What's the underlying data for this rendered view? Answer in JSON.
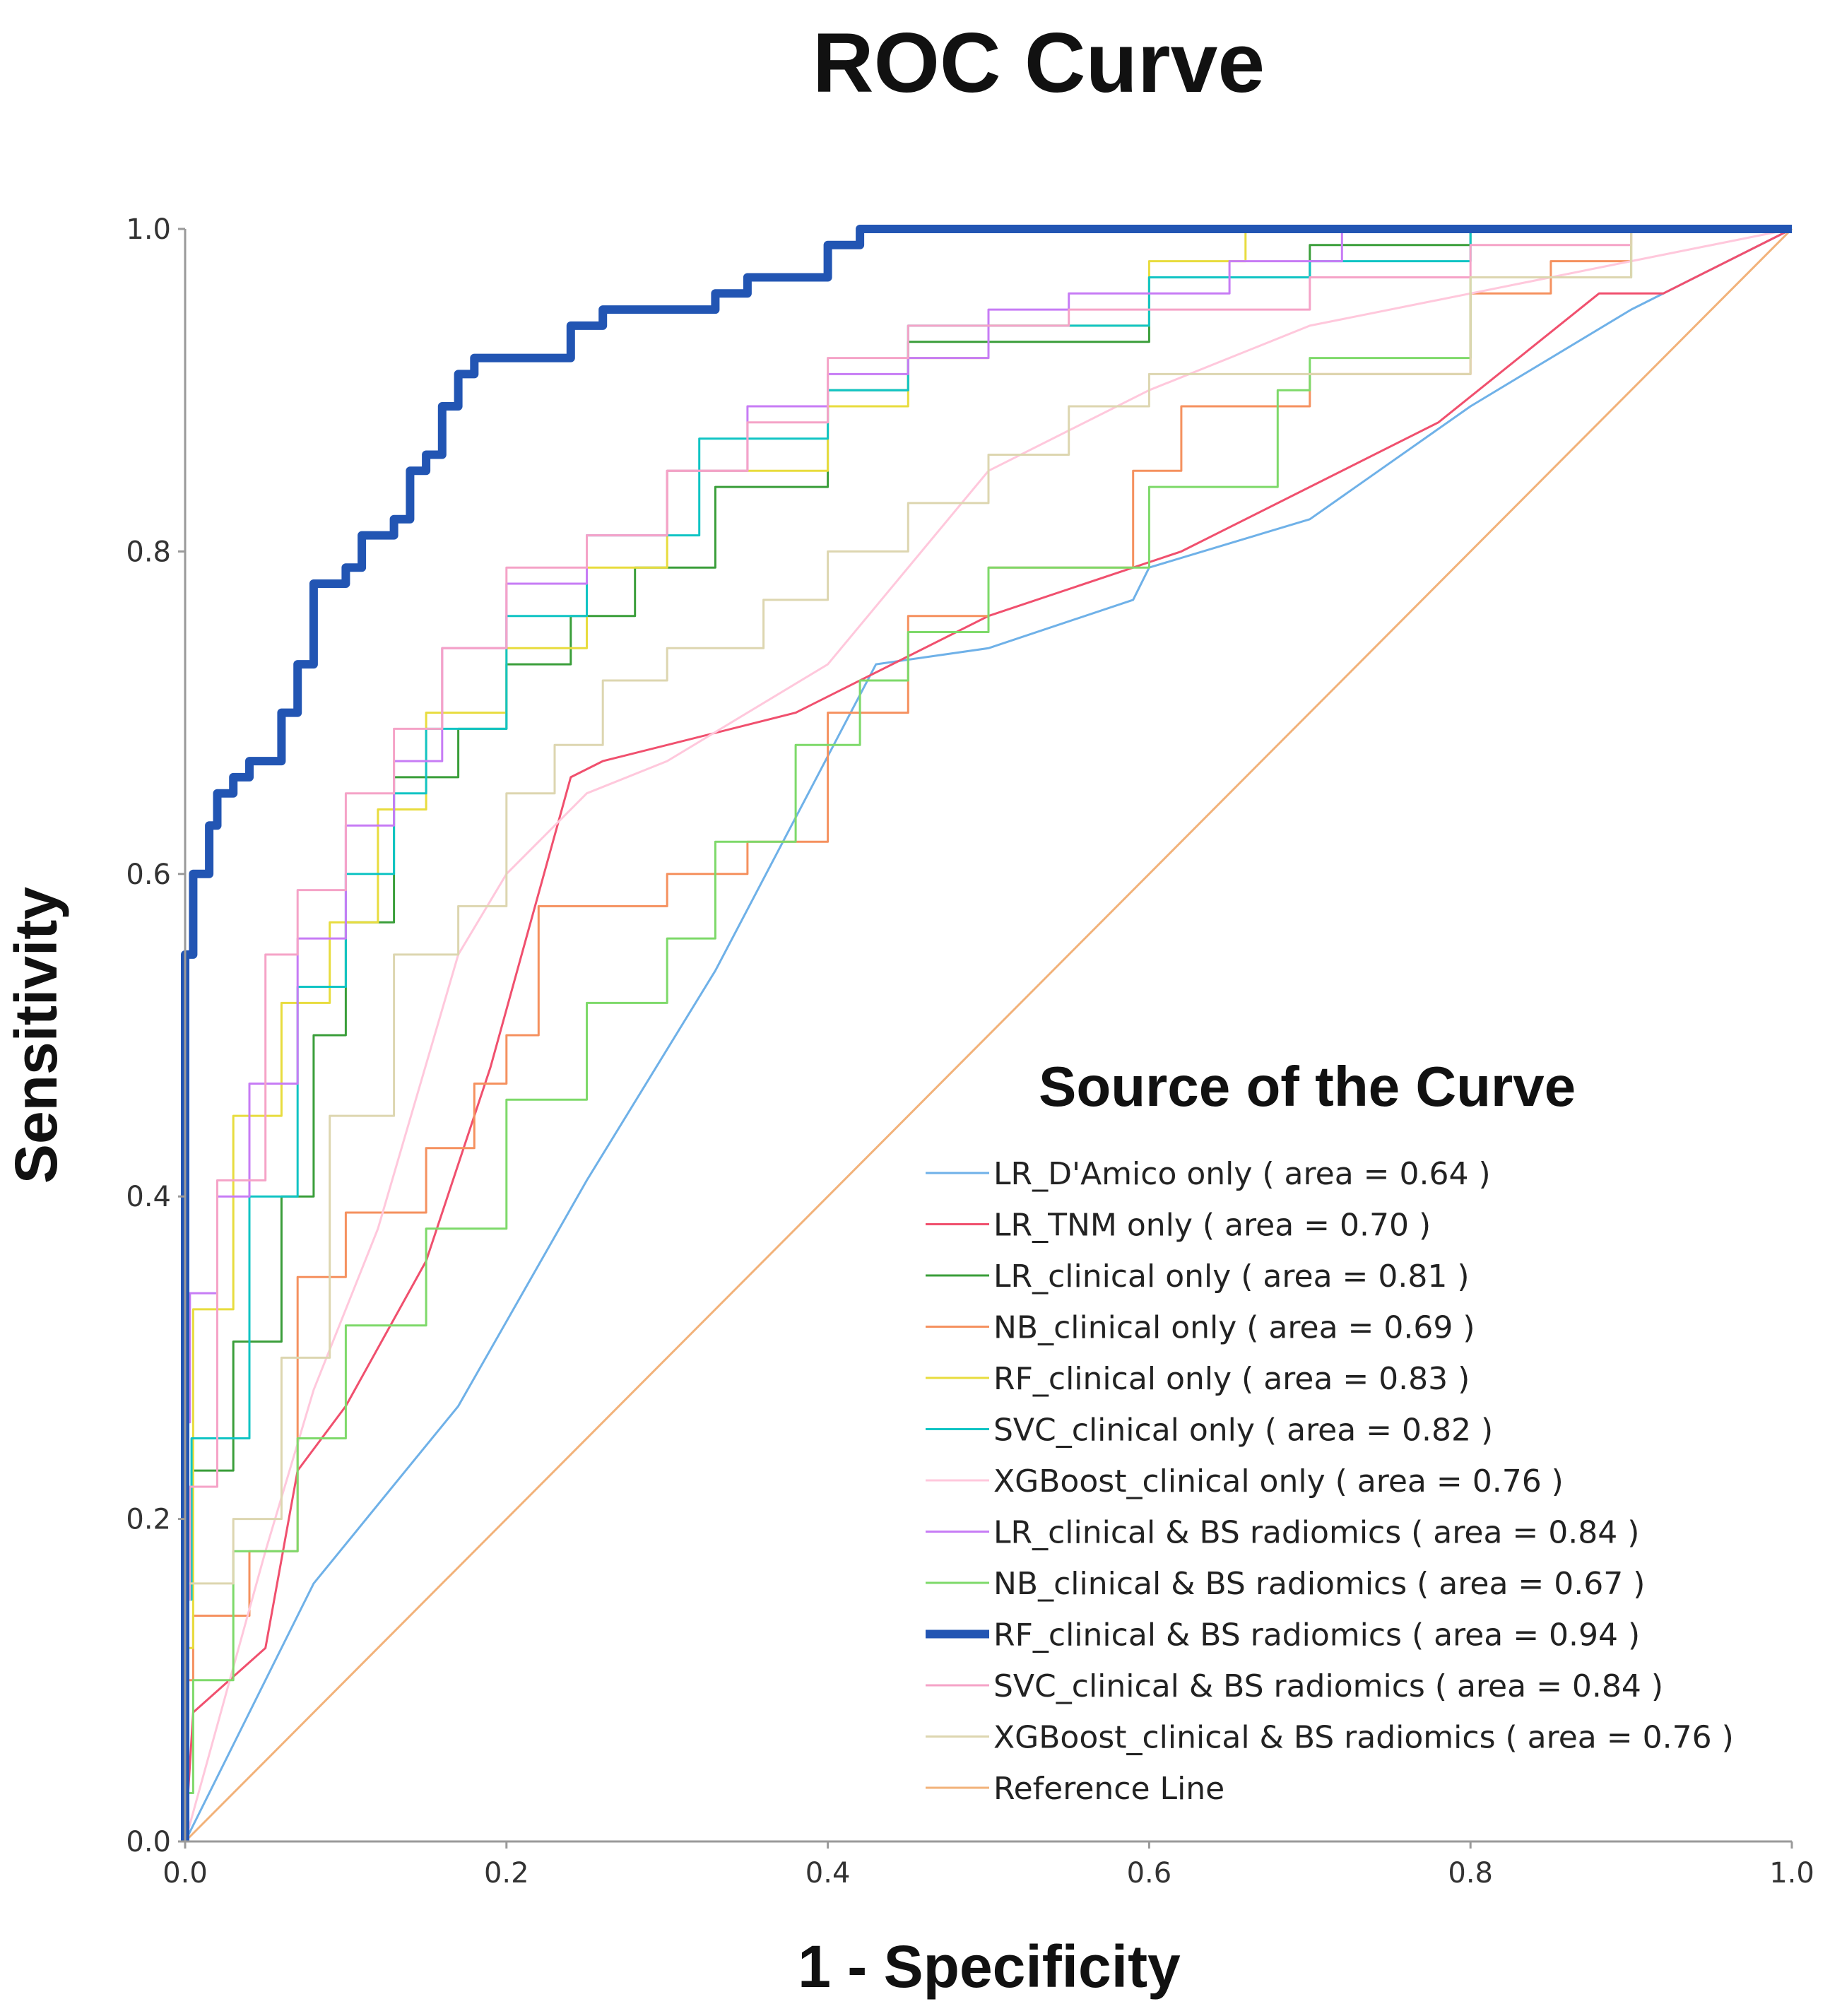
{
  "chart_data": {
    "type": "line",
    "title": "ROC Curve",
    "xlabel": "1 - Specificity",
    "ylabel": "Sensitivity",
    "xlim": [
      0,
      1
    ],
    "ylim": [
      0,
      1
    ],
    "x_ticks": [
      "0.0",
      "0.2",
      "0.4",
      "0.6",
      "0.8",
      "1.0"
    ],
    "y_ticks": [
      "0.0",
      "0.2",
      "0.4",
      "0.6",
      "0.8",
      "1.0"
    ],
    "grid": false,
    "legend_title": "Source of the Curve",
    "legend_position": "bottom-right",
    "series": [
      {
        "name": "LR_D'Amico only",
        "label": "LR_D'Amico only ( area = 0.64 )",
        "auc": 0.64,
        "color": "#6fb1e8",
        "width": 3,
        "x": [
          0,
          0.08,
          0.17,
          0.25,
          0.33,
          0.43,
          0.5,
          0.59,
          0.6,
          0.7,
          0.8,
          0.9,
          1.0
        ],
        "y": [
          0,
          0.16,
          0.27,
          0.41,
          0.54,
          0.73,
          0.74,
          0.77,
          0.79,
          0.82,
          0.89,
          0.95,
          1.0
        ]
      },
      {
        "name": "LR_TNM only",
        "label": "LR_TNM only ( area = 0.70 )",
        "auc": 0.7,
        "color": "#f0506e",
        "width": 3,
        "x": [
          0,
          0.005,
          0.05,
          0.07,
          0.1,
          0.15,
          0.19,
          0.24,
          0.26,
          0.38,
          0.5,
          0.62,
          0.78,
          0.88,
          0.92,
          1.0
        ],
        "y": [
          0,
          0.08,
          0.12,
          0.23,
          0.27,
          0.36,
          0.48,
          0.66,
          0.67,
          0.7,
          0.76,
          0.8,
          0.88,
          0.96,
          0.96,
          1.0
        ]
      },
      {
        "name": "LR_clinical only",
        "label": "LR_clinical only ( area = 0.81 )",
        "auc": 0.81,
        "color": "#3a9e3a",
        "width": 3,
        "step": true,
        "x": [
          0,
          0.004,
          0.03,
          0.06,
          0.08,
          0.1,
          0.13,
          0.17,
          0.2,
          0.24,
          0.28,
          0.33,
          0.4,
          0.45,
          0.5,
          0.6,
          0.7,
          0.8,
          0.9,
          1.0
        ],
        "y": [
          0,
          0.17,
          0.23,
          0.31,
          0.4,
          0.5,
          0.57,
          0.66,
          0.69,
          0.73,
          0.76,
          0.79,
          0.84,
          0.9,
          0.93,
          0.93,
          0.97,
          0.99,
          1.0,
          1.0
        ]
      },
      {
        "name": "NB_clinical only",
        "label": "NB_clinical only ( area = 0.69 )",
        "auc": 0.69,
        "color": "#f5915f",
        "width": 3,
        "step": true,
        "x": [
          0,
          0.005,
          0.04,
          0.07,
          0.1,
          0.15,
          0.18,
          0.2,
          0.22,
          0.3,
          0.35,
          0.4,
          0.45,
          0.5,
          0.59,
          0.62,
          0.65,
          0.7,
          0.8,
          0.85,
          0.9,
          1.0
        ],
        "y": [
          0,
          0.1,
          0.14,
          0.18,
          0.35,
          0.39,
          0.43,
          0.47,
          0.5,
          0.58,
          0.6,
          0.62,
          0.7,
          0.76,
          0.79,
          0.85,
          0.89,
          0.89,
          0.91,
          0.96,
          0.98,
          1.0
        ]
      },
      {
        "name": "RF_clinical only",
        "label": "RF_clinical only ( area = 0.83 )",
        "auc": 0.83,
        "color": "#e8dc3e",
        "width": 3,
        "step": true,
        "x": [
          0,
          0.005,
          0.03,
          0.06,
          0.09,
          0.12,
          0.15,
          0.2,
          0.25,
          0.3,
          0.4,
          0.45,
          0.5,
          0.6,
          0.66,
          0.7,
          0.8,
          1.0
        ],
        "y": [
          0,
          0.12,
          0.33,
          0.45,
          0.52,
          0.57,
          0.64,
          0.7,
          0.74,
          0.79,
          0.85,
          0.89,
          0.92,
          0.94,
          0.98,
          1.0,
          1.0,
          1.0
        ]
      },
      {
        "name": "SVC_clinical only",
        "label": "SVC_clinical only ( area = 0.82 )",
        "auc": 0.82,
        "color": "#11c4c4",
        "width": 3,
        "step": true,
        "x": [
          0,
          0.004,
          0.04,
          0.07,
          0.1,
          0.13,
          0.15,
          0.2,
          0.25,
          0.32,
          0.4,
          0.45,
          0.52,
          0.6,
          0.7,
          0.8,
          0.9,
          1.0
        ],
        "y": [
          0,
          0.15,
          0.25,
          0.4,
          0.53,
          0.6,
          0.65,
          0.69,
          0.76,
          0.81,
          0.87,
          0.9,
          0.94,
          0.94,
          0.97,
          0.98,
          1.0,
          1.0
        ]
      },
      {
        "name": "XGBoost_clinical only",
        "label": "XGBoost_clinical only ( area = 0.76 )",
        "auc": 0.76,
        "color": "#ffc8dc",
        "width": 3,
        "x": [
          0,
          0.05,
          0.08,
          0.12,
          0.17,
          0.2,
          0.25,
          0.3,
          0.4,
          0.5,
          0.6,
          0.7,
          0.8,
          0.9,
          1.0
        ],
        "y": [
          0,
          0.18,
          0.28,
          0.38,
          0.55,
          0.6,
          0.65,
          0.67,
          0.73,
          0.85,
          0.9,
          0.94,
          0.96,
          0.98,
          1.0
        ]
      },
      {
        "name": "LR_clinical & BS radiomics",
        "label": "LR_clinical & BS radiomics ( area = 0.84 )",
        "auc": 0.84,
        "color": "#c77cf5",
        "width": 3,
        "step": true,
        "x": [
          0,
          0.003,
          0.02,
          0.04,
          0.07,
          0.1,
          0.13,
          0.16,
          0.2,
          0.25,
          0.3,
          0.35,
          0.4,
          0.45,
          0.5,
          0.55,
          0.65,
          0.72,
          0.8,
          1.0
        ],
        "y": [
          0,
          0.26,
          0.34,
          0.4,
          0.47,
          0.56,
          0.63,
          0.67,
          0.74,
          0.78,
          0.81,
          0.85,
          0.89,
          0.91,
          0.92,
          0.95,
          0.96,
          0.98,
          1.0,
          1.0
        ]
      },
      {
        "name": "NB_clinical & BS radiomics",
        "label": "NB_clinical & BS radiomics ( area = 0.67 )",
        "auc": 0.67,
        "color": "#7ed96a",
        "width": 3,
        "step": true,
        "x": [
          0,
          0.005,
          0.03,
          0.07,
          0.1,
          0.15,
          0.2,
          0.25,
          0.3,
          0.33,
          0.38,
          0.42,
          0.45,
          0.5,
          0.6,
          0.68,
          0.7,
          0.8,
          0.9,
          1.0
        ],
        "y": [
          0,
          0.03,
          0.1,
          0.18,
          0.25,
          0.32,
          0.38,
          0.46,
          0.52,
          0.56,
          0.62,
          0.68,
          0.72,
          0.75,
          0.79,
          0.84,
          0.9,
          0.92,
          0.97,
          1.0
        ]
      },
      {
        "name": "RF_clinical & BS radiomics",
        "label": "RF_clinical & BS radiomics ( area = 0.94 )",
        "auc": 0.94,
        "color": "#2255b3",
        "width": 12,
        "step": true,
        "x": [
          0,
          0.0,
          0.005,
          0.015,
          0.02,
          0.03,
          0.04,
          0.06,
          0.07,
          0.08,
          0.1,
          0.11,
          0.13,
          0.14,
          0.15,
          0.16,
          0.17,
          0.18,
          0.24,
          0.26,
          0.33,
          0.35,
          0.37,
          0.4,
          0.42,
          0.57,
          1.0
        ],
        "y": [
          0,
          0.53,
          0.55,
          0.6,
          0.63,
          0.65,
          0.66,
          0.67,
          0.7,
          0.73,
          0.78,
          0.79,
          0.81,
          0.82,
          0.85,
          0.86,
          0.89,
          0.91,
          0.92,
          0.94,
          0.95,
          0.96,
          0.97,
          0.97,
          0.99,
          1.0,
          1.0
        ]
      },
      {
        "name": "SVC_clinical & BS radiomics",
        "label": "SVC_clinical & BS radiomics ( area = 0.84 )",
        "auc": 0.84,
        "color": "#f5a3c7",
        "width": 3,
        "step": true,
        "x": [
          0,
          0.003,
          0.02,
          0.05,
          0.07,
          0.1,
          0.13,
          0.16,
          0.2,
          0.25,
          0.3,
          0.35,
          0.4,
          0.45,
          0.55,
          0.7,
          0.8,
          0.9,
          1.0
        ],
        "y": [
          0,
          0.15,
          0.22,
          0.41,
          0.55,
          0.59,
          0.65,
          0.69,
          0.74,
          0.79,
          0.81,
          0.85,
          0.88,
          0.92,
          0.94,
          0.95,
          0.97,
          0.99,
          1.0
        ]
      },
      {
        "name": "XGBoost_clinical & BS radiomics",
        "label": "XGBoost_clinical & BS radiomics ( area = 0.76 )",
        "auc": 0.76,
        "color": "#ddd6b0",
        "width": 3,
        "step": true,
        "x": [
          0,
          0.03,
          0.06,
          0.09,
          0.13,
          0.17,
          0.2,
          0.23,
          0.26,
          0.3,
          0.36,
          0.4,
          0.45,
          0.5,
          0.55,
          0.6,
          0.7,
          0.8,
          0.9,
          1.0
        ],
        "y": [
          0,
          0.16,
          0.2,
          0.3,
          0.45,
          0.55,
          0.58,
          0.65,
          0.68,
          0.72,
          0.74,
          0.77,
          0.8,
          0.83,
          0.86,
          0.89,
          0.91,
          0.91,
          0.97,
          1.0
        ]
      },
      {
        "name": "Reference Line",
        "label": "Reference Line",
        "color": "#f2b27a",
        "width": 3,
        "x": [
          0,
          1
        ],
        "y": [
          0,
          1
        ]
      }
    ]
  }
}
